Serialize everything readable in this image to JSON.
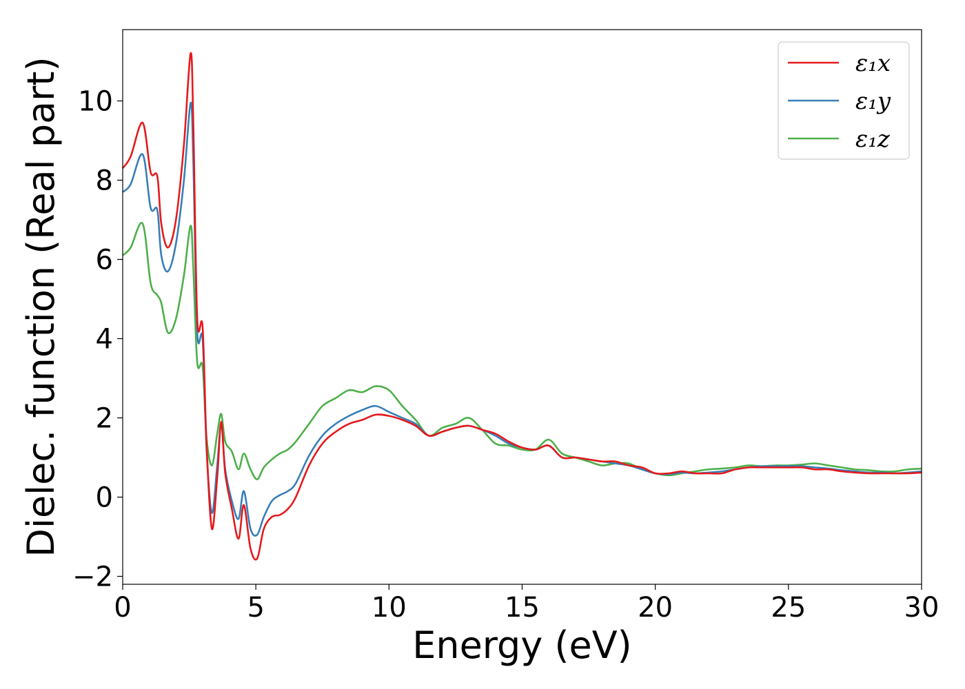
{
  "chart_data": {
    "type": "line",
    "title": "",
    "xlabel": "Energy (eV)",
    "ylabel": "Dielec. function (Real part)",
    "xlim": [
      0,
      30
    ],
    "ylim": [
      -2.2,
      11.8
    ],
    "xticks": [
      0,
      5,
      10,
      15,
      20,
      25,
      30
    ],
    "xtick_labels": [
      "0",
      "5",
      "10",
      "15",
      "20",
      "25",
      "30"
    ],
    "yticks": [
      -2,
      0,
      2,
      4,
      6,
      8,
      10
    ],
    "ytick_labels": [
      "−2",
      "0",
      "2",
      "4",
      "6",
      "8",
      "10"
    ],
    "grid": false,
    "legend_position": "top-right",
    "x": [
      0,
      0.3,
      0.75,
      1.05,
      1.3,
      1.45,
      1.7,
      2.0,
      2.3,
      2.55,
      2.65,
      2.8,
      3.0,
      3.15,
      3.35,
      3.55,
      3.7,
      3.85,
      4.1,
      4.35,
      4.55,
      4.8,
      5.05,
      5.3,
      5.6,
      5.9,
      6.2,
      6.5,
      7.0,
      7.5,
      8.0,
      8.5,
      9.0,
      9.5,
      10.0,
      10.5,
      11.0,
      11.5,
      12.0,
      12.5,
      13.0,
      13.5,
      14.0,
      14.5,
      15.0,
      15.5,
      16.0,
      16.5,
      17.0,
      17.5,
      18.0,
      18.5,
      19.0,
      19.5,
      20.0,
      20.5,
      21.0,
      21.5,
      22.0,
      22.5,
      23.0,
      23.5,
      24.0,
      24.5,
      25.0,
      25.5,
      26.0,
      26.5,
      27.0,
      27.5,
      28.0,
      28.5,
      29.0,
      29.5,
      30.0
    ],
    "series": [
      {
        "name": "ε₁x",
        "color": "#e41a1c",
        "values": [
          8.3,
          8.6,
          9.45,
          8.2,
          8.1,
          6.9,
          6.3,
          7.0,
          8.9,
          11.2,
          9.5,
          4.5,
          4.3,
          1.3,
          -0.8,
          0.5,
          1.9,
          0.6,
          -0.3,
          -1.05,
          -0.2,
          -1.3,
          -1.55,
          -0.8,
          -0.5,
          -0.45,
          -0.3,
          0.0,
          0.8,
          1.35,
          1.65,
          1.85,
          1.95,
          2.08,
          2.05,
          1.95,
          1.8,
          1.55,
          1.65,
          1.75,
          1.8,
          1.7,
          1.6,
          1.4,
          1.25,
          1.2,
          1.3,
          1.0,
          1.0,
          0.95,
          0.9,
          0.9,
          0.8,
          0.75,
          0.6,
          0.6,
          0.65,
          0.6,
          0.6,
          0.6,
          0.7,
          0.75,
          0.75,
          0.75,
          0.75,
          0.75,
          0.7,
          0.7,
          0.65,
          0.62,
          0.6,
          0.6,
          0.6,
          0.6,
          0.62
        ]
      },
      {
        "name": "ε₁y",
        "color": "#377eb8",
        "values": [
          7.7,
          7.9,
          8.65,
          7.3,
          7.25,
          6.1,
          5.7,
          6.4,
          8.0,
          9.95,
          8.5,
          4.15,
          4.0,
          1.2,
          -0.4,
          0.8,
          1.85,
          0.7,
          -0.1,
          -0.55,
          0.15,
          -0.8,
          -0.95,
          -0.5,
          -0.1,
          0.05,
          0.15,
          0.35,
          1.05,
          1.55,
          1.85,
          2.05,
          2.2,
          2.3,
          2.15,
          2.0,
          1.85,
          1.55,
          1.65,
          1.75,
          1.8,
          1.7,
          1.55,
          1.35,
          1.25,
          1.2,
          1.3,
          1.0,
          1.0,
          0.95,
          0.9,
          0.85,
          0.8,
          0.7,
          0.6,
          0.58,
          0.62,
          0.6,
          0.62,
          0.65,
          0.7,
          0.75,
          0.78,
          0.78,
          0.78,
          0.78,
          0.75,
          0.72,
          0.68,
          0.65,
          0.62,
          0.62,
          0.6,
          0.62,
          0.65
        ]
      },
      {
        "name": "ε₁z",
        "color": "#4daf4a",
        "values": [
          6.1,
          6.3,
          6.9,
          5.4,
          5.1,
          4.9,
          4.15,
          4.5,
          5.6,
          6.85,
          5.8,
          3.4,
          3.3,
          1.5,
          0.8,
          1.6,
          2.1,
          1.4,
          1.15,
          0.7,
          1.1,
          0.7,
          0.45,
          0.75,
          0.95,
          1.1,
          1.2,
          1.4,
          1.85,
          2.3,
          2.5,
          2.7,
          2.65,
          2.8,
          2.7,
          2.3,
          1.95,
          1.55,
          1.75,
          1.85,
          2.0,
          1.7,
          1.35,
          1.3,
          1.2,
          1.2,
          1.45,
          1.1,
          1.0,
          0.9,
          0.8,
          0.85,
          0.85,
          0.7,
          0.6,
          0.55,
          0.6,
          0.65,
          0.7,
          0.72,
          0.75,
          0.8,
          0.78,
          0.8,
          0.8,
          0.82,
          0.85,
          0.8,
          0.75,
          0.7,
          0.68,
          0.65,
          0.65,
          0.7,
          0.72
        ]
      }
    ]
  }
}
